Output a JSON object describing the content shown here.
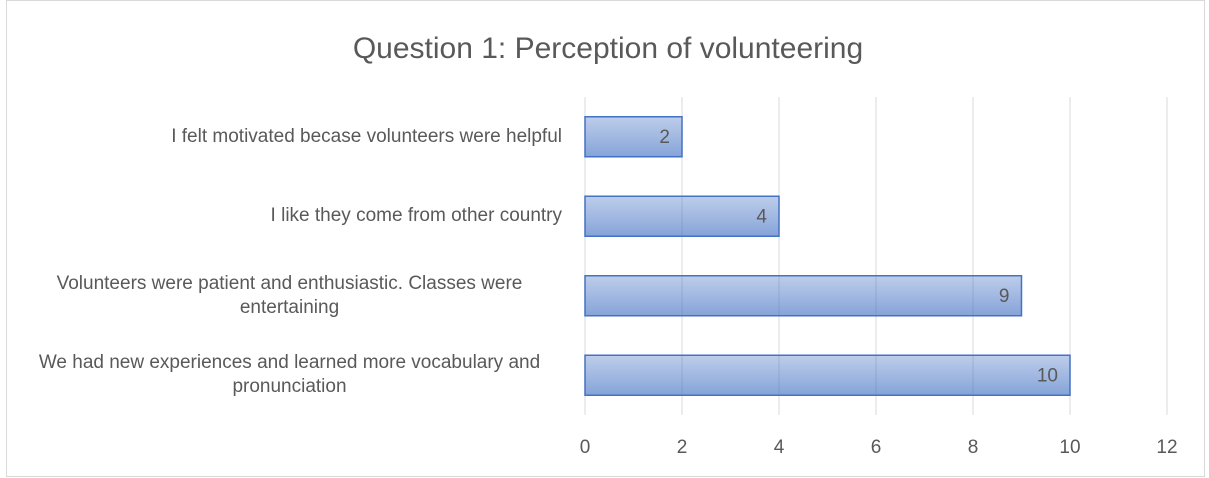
{
  "chart_data": {
    "type": "bar",
    "orientation": "horizontal",
    "title": "Question 1: Perception of volunteering",
    "categories": [
      "I felt motivated becase volunteers were helpful",
      "I like they come from other country",
      "Volunteers were patient and enthusiastic. Classes were entertaining",
      "We had new experiences and learned more vocabulary and pronunciation"
    ],
    "values": [
      2,
      4,
      9,
      10
    ],
    "color": "#4472c4",
    "xlim": [
      0,
      12
    ],
    "xticks": [
      0,
      2,
      4,
      6,
      8,
      10,
      12
    ],
    "grid": true
  }
}
